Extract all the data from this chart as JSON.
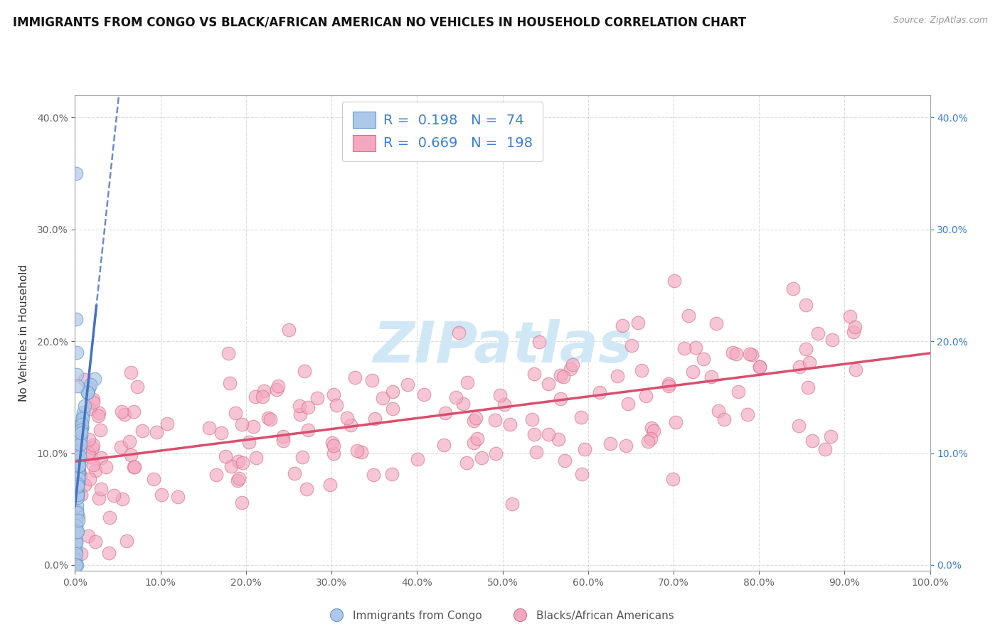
{
  "title": "IMMIGRANTS FROM CONGO VS BLACK/AFRICAN AMERICAN NO VEHICLES IN HOUSEHOLD CORRELATION CHART",
  "source": "Source: ZipAtlas.com",
  "ylabel": "No Vehicles in Household",
  "xlim": [
    0.0,
    1.0
  ],
  "ylim": [
    -0.005,
    0.42
  ],
  "blue_R": 0.198,
  "blue_N": 74,
  "pink_R": 0.669,
  "pink_N": 198,
  "blue_color": "#adc8e8",
  "blue_edge_color": "#6699cc",
  "blue_line_color": "#4472c4",
  "pink_color": "#f4a8c0",
  "pink_edge_color": "#d4708a",
  "pink_line_color": "#d94f6e",
  "watermark_color": "#d0e8f5",
  "background_color": "#ffffff",
  "legend_label_blue": "Immigrants from Congo",
  "legend_label_pink": "Blacks/African Americans",
  "title_color": "#111111",
  "axis_label_color": "#333333",
  "tick_color": "#666666",
  "right_tick_color": "#3a7fd5",
  "grid_color": "#cccccc",
  "grid_style": "--"
}
